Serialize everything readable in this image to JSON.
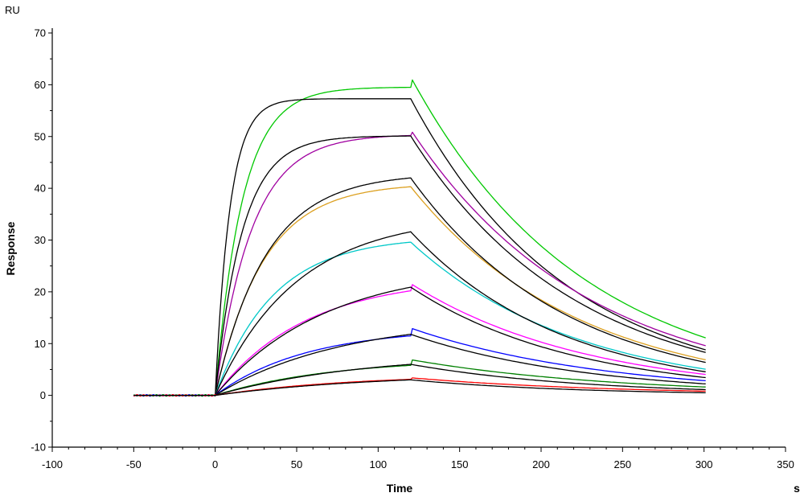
{
  "chart_data": {
    "type": "line",
    "title": "",
    "xlabel": "Time",
    "ylabel": "Response",
    "x_unit": "s",
    "y_unit": "RU",
    "xlim": [
      -100,
      350
    ],
    "ylim": [
      -10,
      70
    ],
    "x_major_ticks": [
      -100,
      -50,
      0,
      50,
      100,
      150,
      200,
      250,
      300,
      350
    ],
    "x_tick_labels": [
      "-100",
      "-50",
      "0",
      "50",
      "100",
      "150",
      "200",
      "250",
      "300",
      "350"
    ],
    "y_major_ticks": [
      -10,
      0,
      10,
      20,
      30,
      40,
      50,
      60,
      70
    ],
    "y_tick_labels": [
      "-10",
      "0",
      "10",
      "20",
      "30",
      "40",
      "50",
      "60",
      "70"
    ],
    "grid": false,
    "legend": "none",
    "association_start": 0,
    "dissociation_start": 120,
    "x_end": 302,
    "series": [
      {
        "color": "#00c800",
        "plateau": 59.5,
        "ka": 0.06,
        "kd": 0.0099,
        "dis_start": 61.5,
        "end": 11.0,
        "drift": 0.02
      },
      {
        "color": "#000000",
        "plateau": 57.3,
        "ka": 0.11,
        "kd": 0.0106,
        "dis_start": 57.3,
        "end": 8.7,
        "drift": 0.0
      },
      {
        "color": "#a000a0",
        "plateau": 50.2,
        "ka": 0.045,
        "kd": 0.0094,
        "dis_start": 51.3,
        "end": 9.5,
        "drift": 0.01
      },
      {
        "color": "#000000",
        "plateau": 50.1,
        "ka": 0.06,
        "kd": 0.0099,
        "dis_start": 50.1,
        "end": 8.2,
        "drift": 0.0
      },
      {
        "color": "#dca020",
        "plateau": 40.3,
        "ka": 0.034,
        "kd": 0.0098,
        "dis_start": 40.3,
        "end": 6.8,
        "drift": 0.0
      },
      {
        "color": "#000000",
        "plateau": 42.0,
        "ka": 0.032,
        "kd": 0.0105,
        "dis_start": 42.0,
        "end": 6.3,
        "drift": 0.0
      },
      {
        "color": "#00c8c8",
        "plateau": 29.6,
        "ka": 0.028,
        "kd": 0.0098,
        "dis_start": 29.6,
        "end": 5.0,
        "drift": 0.0
      },
      {
        "color": "#000000",
        "plateau": 31.6,
        "ka": 0.02,
        "kd": 0.0107,
        "dis_start": 31.6,
        "end": 4.5,
        "drift": 0.0
      },
      {
        "color": "#ff00ff",
        "plateau": 20.2,
        "ka": 0.018,
        "kd": 0.0095,
        "dis_start": 21.6,
        "end": 4.0,
        "drift": 0.0
      },
      {
        "color": "#000000",
        "plateau": 20.9,
        "ka": 0.015,
        "kd": 0.01,
        "dis_start": 20.9,
        "end": 3.4,
        "drift": 0.0
      },
      {
        "color": "#0000ff",
        "plateau": 11.5,
        "ka": 0.018,
        "kd": 0.0087,
        "dis_start": 13.0,
        "end": 2.8,
        "drift": 0.0
      },
      {
        "color": "#000000",
        "plateau": 11.8,
        "ka": 0.013,
        "kd": 0.01,
        "dis_start": 11.8,
        "end": 2.2,
        "drift": 0.0
      },
      {
        "color": "#008000",
        "plateau": 5.8,
        "ka": 0.014,
        "kd": 0.0085,
        "dis_start": 6.9,
        "end": 1.6,
        "drift": 0.0
      },
      {
        "color": "#000000",
        "plateau": 6.0,
        "ka": 0.011,
        "kd": 0.0095,
        "dis_start": 6.0,
        "end": 1.1,
        "drift": 0.0
      },
      {
        "color": "#ff0000",
        "plateau": 3.1,
        "ka": 0.012,
        "kd": 0.008,
        "dis_start": 3.4,
        "end": 0.8,
        "drift": 0.0
      },
      {
        "color": "#000000",
        "plateau": 3.0,
        "ka": 0.01,
        "kd": 0.009,
        "dis_start": 3.0,
        "end": 0.5,
        "drift": 0.0
      }
    ]
  }
}
